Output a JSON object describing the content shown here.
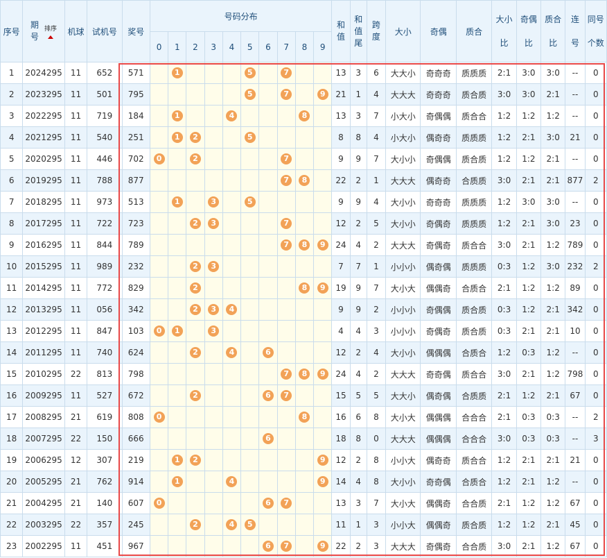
{
  "headers": {
    "seq": "序号",
    "period_top": "期",
    "period_bottom": "号",
    "sort": "排序",
    "ball_machine": "机球",
    "test_number": "试机号",
    "prize_number": "奖号",
    "distribution": "号码分布",
    "digits": [
      "0",
      "1",
      "2",
      "3",
      "4",
      "5",
      "6",
      "7",
      "8",
      "9"
    ],
    "sum_top": "和",
    "sum_bottom": "值",
    "sum_tail_top": "和",
    "sum_tail_mid": "值",
    "sum_tail_bottom": "尾",
    "span_top": "跨",
    "span_bottom": "度",
    "size": "大小",
    "parity": "奇偶",
    "prime": "质合",
    "size_ratio_top": "大小",
    "size_ratio_bottom": "比",
    "parity_ratio_top": "奇偶",
    "parity_ratio_bottom": "比",
    "prime_ratio_top": "质合",
    "prime_ratio_bottom": "比",
    "consec_top": "连",
    "consec_bottom": "号",
    "same_top": "同号",
    "same_bottom": "个数"
  },
  "colors": {
    "ball": "#f2a257",
    "highlight": "#e84848",
    "header_bg": "#eaf4fc",
    "dist_bg": "#fffdea"
  },
  "rows": [
    {
      "seq": "1",
      "period": "2024295",
      "machine": "11",
      "test": "652",
      "prize": "571",
      "balls": [
        1,
        5,
        7
      ],
      "sum": "13",
      "tail": "3",
      "span": "6",
      "size": "大大小",
      "parity": "奇奇奇",
      "prime": "质质质",
      "sr": "2:1",
      "pr": "3:0",
      "qr": "3:0",
      "consec": "--",
      "same": "0"
    },
    {
      "seq": "2",
      "period": "2023295",
      "machine": "11",
      "test": "501",
      "prize": "795",
      "balls": [
        5,
        7,
        9
      ],
      "sum": "21",
      "tail": "1",
      "span": "4",
      "size": "大大大",
      "parity": "奇奇奇",
      "prime": "质合质",
      "sr": "3:0",
      "pr": "3:0",
      "qr": "2:1",
      "consec": "--",
      "same": "0"
    },
    {
      "seq": "3",
      "period": "2022295",
      "machine": "11",
      "test": "719",
      "prize": "184",
      "balls": [
        1,
        4,
        8
      ],
      "sum": "13",
      "tail": "3",
      "span": "7",
      "size": "小大小",
      "parity": "奇偶偶",
      "prime": "质合合",
      "sr": "1:2",
      "pr": "1:2",
      "qr": "1:2",
      "consec": "--",
      "same": "0"
    },
    {
      "seq": "4",
      "period": "2021295",
      "machine": "11",
      "test": "540",
      "prize": "251",
      "balls": [
        1,
        2,
        5
      ],
      "sum": "8",
      "tail": "8",
      "span": "4",
      "size": "小大小",
      "parity": "偶奇奇",
      "prime": "质质质",
      "sr": "1:2",
      "pr": "2:1",
      "qr": "3:0",
      "consec": "21",
      "same": "0"
    },
    {
      "seq": "5",
      "period": "2020295",
      "machine": "11",
      "test": "446",
      "prize": "702",
      "balls": [
        0,
        2,
        7
      ],
      "sum": "9",
      "tail": "9",
      "span": "7",
      "size": "大小小",
      "parity": "奇偶偶",
      "prime": "质合质",
      "sr": "1:2",
      "pr": "1:2",
      "qr": "2:1",
      "consec": "--",
      "same": "0"
    },
    {
      "seq": "6",
      "period": "2019295",
      "machine": "11",
      "test": "788",
      "prize": "877",
      "balls": [
        7,
        8
      ],
      "sum": "22",
      "tail": "2",
      "span": "1",
      "size": "大大大",
      "parity": "偶奇奇",
      "prime": "合质质",
      "sr": "3:0",
      "pr": "2:1",
      "qr": "2:1",
      "consec": "877",
      "same": "2"
    },
    {
      "seq": "7",
      "period": "2018295",
      "machine": "11",
      "test": "973",
      "prize": "513",
      "balls": [
        1,
        3,
        5
      ],
      "sum": "9",
      "tail": "9",
      "span": "4",
      "size": "大小小",
      "parity": "奇奇奇",
      "prime": "质质质",
      "sr": "1:2",
      "pr": "3:0",
      "qr": "3:0",
      "consec": "--",
      "same": "0"
    },
    {
      "seq": "8",
      "period": "2017295",
      "machine": "11",
      "test": "722",
      "prize": "723",
      "balls": [
        2,
        3,
        7
      ],
      "sum": "12",
      "tail": "2",
      "span": "5",
      "size": "大小小",
      "parity": "奇偶奇",
      "prime": "质质质",
      "sr": "1:2",
      "pr": "2:1",
      "qr": "3:0",
      "consec": "23",
      "same": "0"
    },
    {
      "seq": "9",
      "period": "2016295",
      "machine": "11",
      "test": "844",
      "prize": "789",
      "balls": [
        7,
        8,
        9
      ],
      "sum": "24",
      "tail": "4",
      "span": "2",
      "size": "大大大",
      "parity": "奇偶奇",
      "prime": "质合合",
      "sr": "3:0",
      "pr": "2:1",
      "qr": "1:2",
      "consec": "789",
      "same": "0"
    },
    {
      "seq": "10",
      "period": "2015295",
      "machine": "11",
      "test": "989",
      "prize": "232",
      "balls": [
        2,
        3
      ],
      "sum": "7",
      "tail": "7",
      "span": "1",
      "size": "小小小",
      "parity": "偶奇偶",
      "prime": "质质质",
      "sr": "0:3",
      "pr": "1:2",
      "qr": "3:0",
      "consec": "232",
      "same": "2"
    },
    {
      "seq": "11",
      "period": "2014295",
      "machine": "11",
      "test": "772",
      "prize": "829",
      "balls": [
        2,
        8,
        9
      ],
      "sum": "19",
      "tail": "9",
      "span": "7",
      "size": "大小大",
      "parity": "偶偶奇",
      "prime": "合质合",
      "sr": "2:1",
      "pr": "1:2",
      "qr": "1:2",
      "consec": "89",
      "same": "0"
    },
    {
      "seq": "12",
      "period": "2013295",
      "machine": "11",
      "test": "056",
      "prize": "342",
      "balls": [
        2,
        3,
        4
      ],
      "sum": "9",
      "tail": "9",
      "span": "2",
      "size": "小小小",
      "parity": "奇偶偶",
      "prime": "质合质",
      "sr": "0:3",
      "pr": "1:2",
      "qr": "2:1",
      "consec": "342",
      "same": "0"
    },
    {
      "seq": "13",
      "period": "2012295",
      "machine": "11",
      "test": "847",
      "prize": "103",
      "balls": [
        0,
        1,
        3
      ],
      "sum": "4",
      "tail": "4",
      "span": "3",
      "size": "小小小",
      "parity": "奇偶奇",
      "prime": "质合质",
      "sr": "0:3",
      "pr": "2:1",
      "qr": "2:1",
      "consec": "10",
      "same": "0"
    },
    {
      "seq": "14",
      "period": "2011295",
      "machine": "11",
      "test": "740",
      "prize": "624",
      "balls": [
        2,
        4,
        6
      ],
      "sum": "12",
      "tail": "2",
      "span": "4",
      "size": "大小小",
      "parity": "偶偶偶",
      "prime": "合质合",
      "sr": "1:2",
      "pr": "0:3",
      "qr": "1:2",
      "consec": "--",
      "same": "0"
    },
    {
      "seq": "15",
      "period": "2010295",
      "machine": "22",
      "test": "813",
      "prize": "798",
      "balls": [
        7,
        8,
        9
      ],
      "sum": "24",
      "tail": "4",
      "span": "2",
      "size": "大大大",
      "parity": "奇奇偶",
      "prime": "质合合",
      "sr": "3:0",
      "pr": "2:1",
      "qr": "1:2",
      "consec": "798",
      "same": "0"
    },
    {
      "seq": "16",
      "period": "2009295",
      "machine": "11",
      "test": "527",
      "prize": "672",
      "balls": [
        2,
        6,
        7
      ],
      "sum": "15",
      "tail": "5",
      "span": "5",
      "size": "大大小",
      "parity": "偶奇偶",
      "prime": "合质质",
      "sr": "2:1",
      "pr": "1:2",
      "qr": "2:1",
      "consec": "67",
      "same": "0"
    },
    {
      "seq": "17",
      "period": "2008295",
      "machine": "21",
      "test": "619",
      "prize": "808",
      "balls": [
        0,
        8
      ],
      "sum": "16",
      "tail": "6",
      "span": "8",
      "size": "大小大",
      "parity": "偶偶偶",
      "prime": "合合合",
      "sr": "2:1",
      "pr": "0:3",
      "qr": "0:3",
      "consec": "--",
      "same": "2"
    },
    {
      "seq": "18",
      "period": "2007295",
      "machine": "22",
      "test": "150",
      "prize": "666",
      "balls": [
        6
      ],
      "sum": "18",
      "tail": "8",
      "span": "0",
      "size": "大大大",
      "parity": "偶偶偶",
      "prime": "合合合",
      "sr": "3:0",
      "pr": "0:3",
      "qr": "0:3",
      "consec": "--",
      "same": "3"
    },
    {
      "seq": "19",
      "period": "2006295",
      "machine": "12",
      "test": "307",
      "prize": "219",
      "balls": [
        1,
        2,
        9
      ],
      "sum": "12",
      "tail": "2",
      "span": "8",
      "size": "小小大",
      "parity": "偶奇奇",
      "prime": "质合合",
      "sr": "1:2",
      "pr": "2:1",
      "qr": "2:1",
      "consec": "21",
      "same": "0"
    },
    {
      "seq": "20",
      "period": "2005295",
      "machine": "21",
      "test": "762",
      "prize": "914",
      "balls": [
        1,
        4,
        9
      ],
      "sum": "14",
      "tail": "4",
      "span": "8",
      "size": "大小小",
      "parity": "奇奇偶",
      "prime": "合质合",
      "sr": "1:2",
      "pr": "2:1",
      "qr": "1:2",
      "consec": "--",
      "same": "0"
    },
    {
      "seq": "21",
      "period": "2004295",
      "machine": "21",
      "test": "140",
      "prize": "607",
      "balls": [
        0,
        6,
        7
      ],
      "sum": "13",
      "tail": "3",
      "span": "7",
      "size": "大小大",
      "parity": "偶偶奇",
      "prime": "合合质",
      "sr": "2:1",
      "pr": "1:2",
      "qr": "1:2",
      "consec": "67",
      "same": "0"
    },
    {
      "seq": "22",
      "period": "2003295",
      "machine": "22",
      "test": "357",
      "prize": "245",
      "balls": [
        2,
        4,
        5
      ],
      "sum": "11",
      "tail": "1",
      "span": "3",
      "size": "小小大",
      "parity": "偶偶奇",
      "prime": "质合质",
      "sr": "1:2",
      "pr": "1:2",
      "qr": "2:1",
      "consec": "45",
      "same": "0"
    },
    {
      "seq": "23",
      "period": "2002295",
      "machine": "11",
      "test": "451",
      "prize": "967",
      "balls": [
        6,
        7,
        9
      ],
      "sum": "22",
      "tail": "2",
      "span": "3",
      "size": "大大大",
      "parity": "奇偶奇",
      "prime": "合合质",
      "sr": "3:0",
      "pr": "2:1",
      "qr": "1:2",
      "consec": "67",
      "same": "0"
    }
  ]
}
